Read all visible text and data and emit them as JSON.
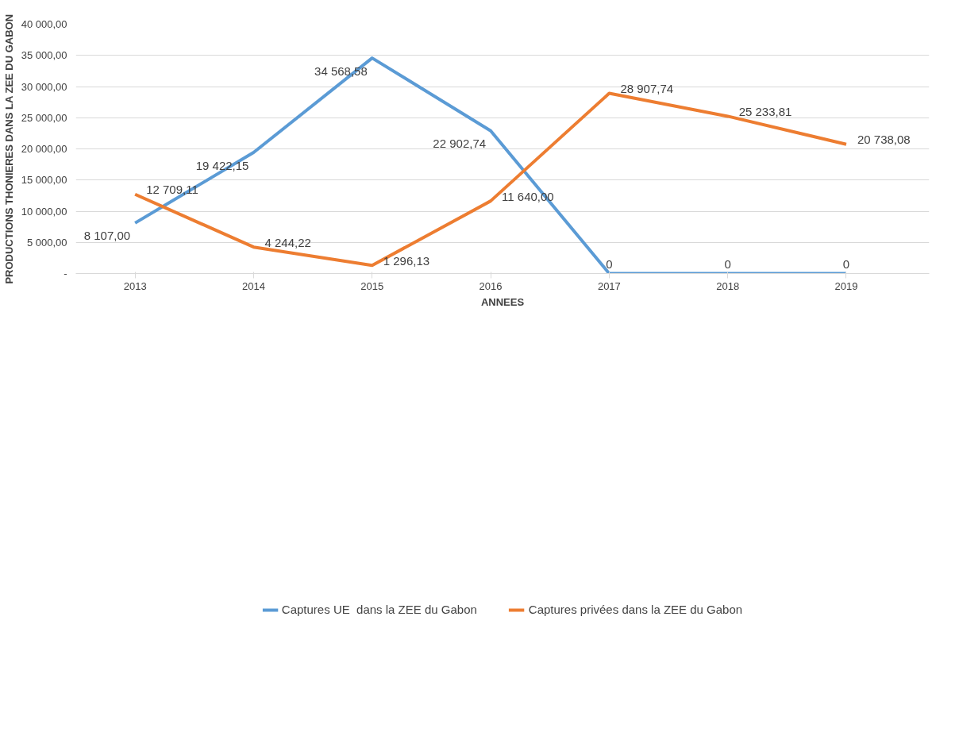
{
  "chart_data": {
    "type": "line",
    "xlabel": "ANNEES",
    "ylabel": "PRODUCTIONS THONIERES DANS LA ZEE DU GABON",
    "categories": [
      "2013",
      "2014",
      "2015",
      "2016",
      "2017",
      "2018",
      "2019"
    ],
    "series": [
      {
        "name": "Captures UE  dans la ZEE du Gabon",
        "color": "#5b9bd5",
        "values": [
          8107.0,
          19422.15,
          34568.58,
          22902.74,
          0,
          0,
          0
        ],
        "value_labels": [
          "8 107,00",
          "19 422,15",
          "34 568,58",
          "22 902,74",
          "0",
          "0",
          "0"
        ]
      },
      {
        "name": "Captures privées dans la ZEE du Gabon",
        "color": "#ed7d31",
        "values": [
          12709.11,
          4244.22,
          1296.13,
          11640.0,
          28907.74,
          25233.81,
          20738.08
        ],
        "value_labels": [
          "12 709,11",
          "4 244,22",
          "1 296,13",
          "11 640,00",
          "28 907,74",
          "25 233,81",
          "20 738,08"
        ]
      }
    ],
    "ylim": [
      0,
      40000
    ],
    "yticks": [
      {
        "value": 0,
        "label": "-"
      },
      {
        "value": 5000,
        "label": "5 000,00"
      },
      {
        "value": 10000,
        "label": "10 000,00"
      },
      {
        "value": 15000,
        "label": "15 000,00"
      },
      {
        "value": 20000,
        "label": "20 000,00"
      },
      {
        "value": 25000,
        "label": "25 000,00"
      },
      {
        "value": 30000,
        "label": "30 000,00"
      },
      {
        "value": 35000,
        "label": "35 000,00"
      },
      {
        "value": 40000,
        "label": "40 000,00"
      }
    ],
    "grid": "y",
    "legend": "bottom",
    "marker": "none",
    "line_style": "solid"
  }
}
